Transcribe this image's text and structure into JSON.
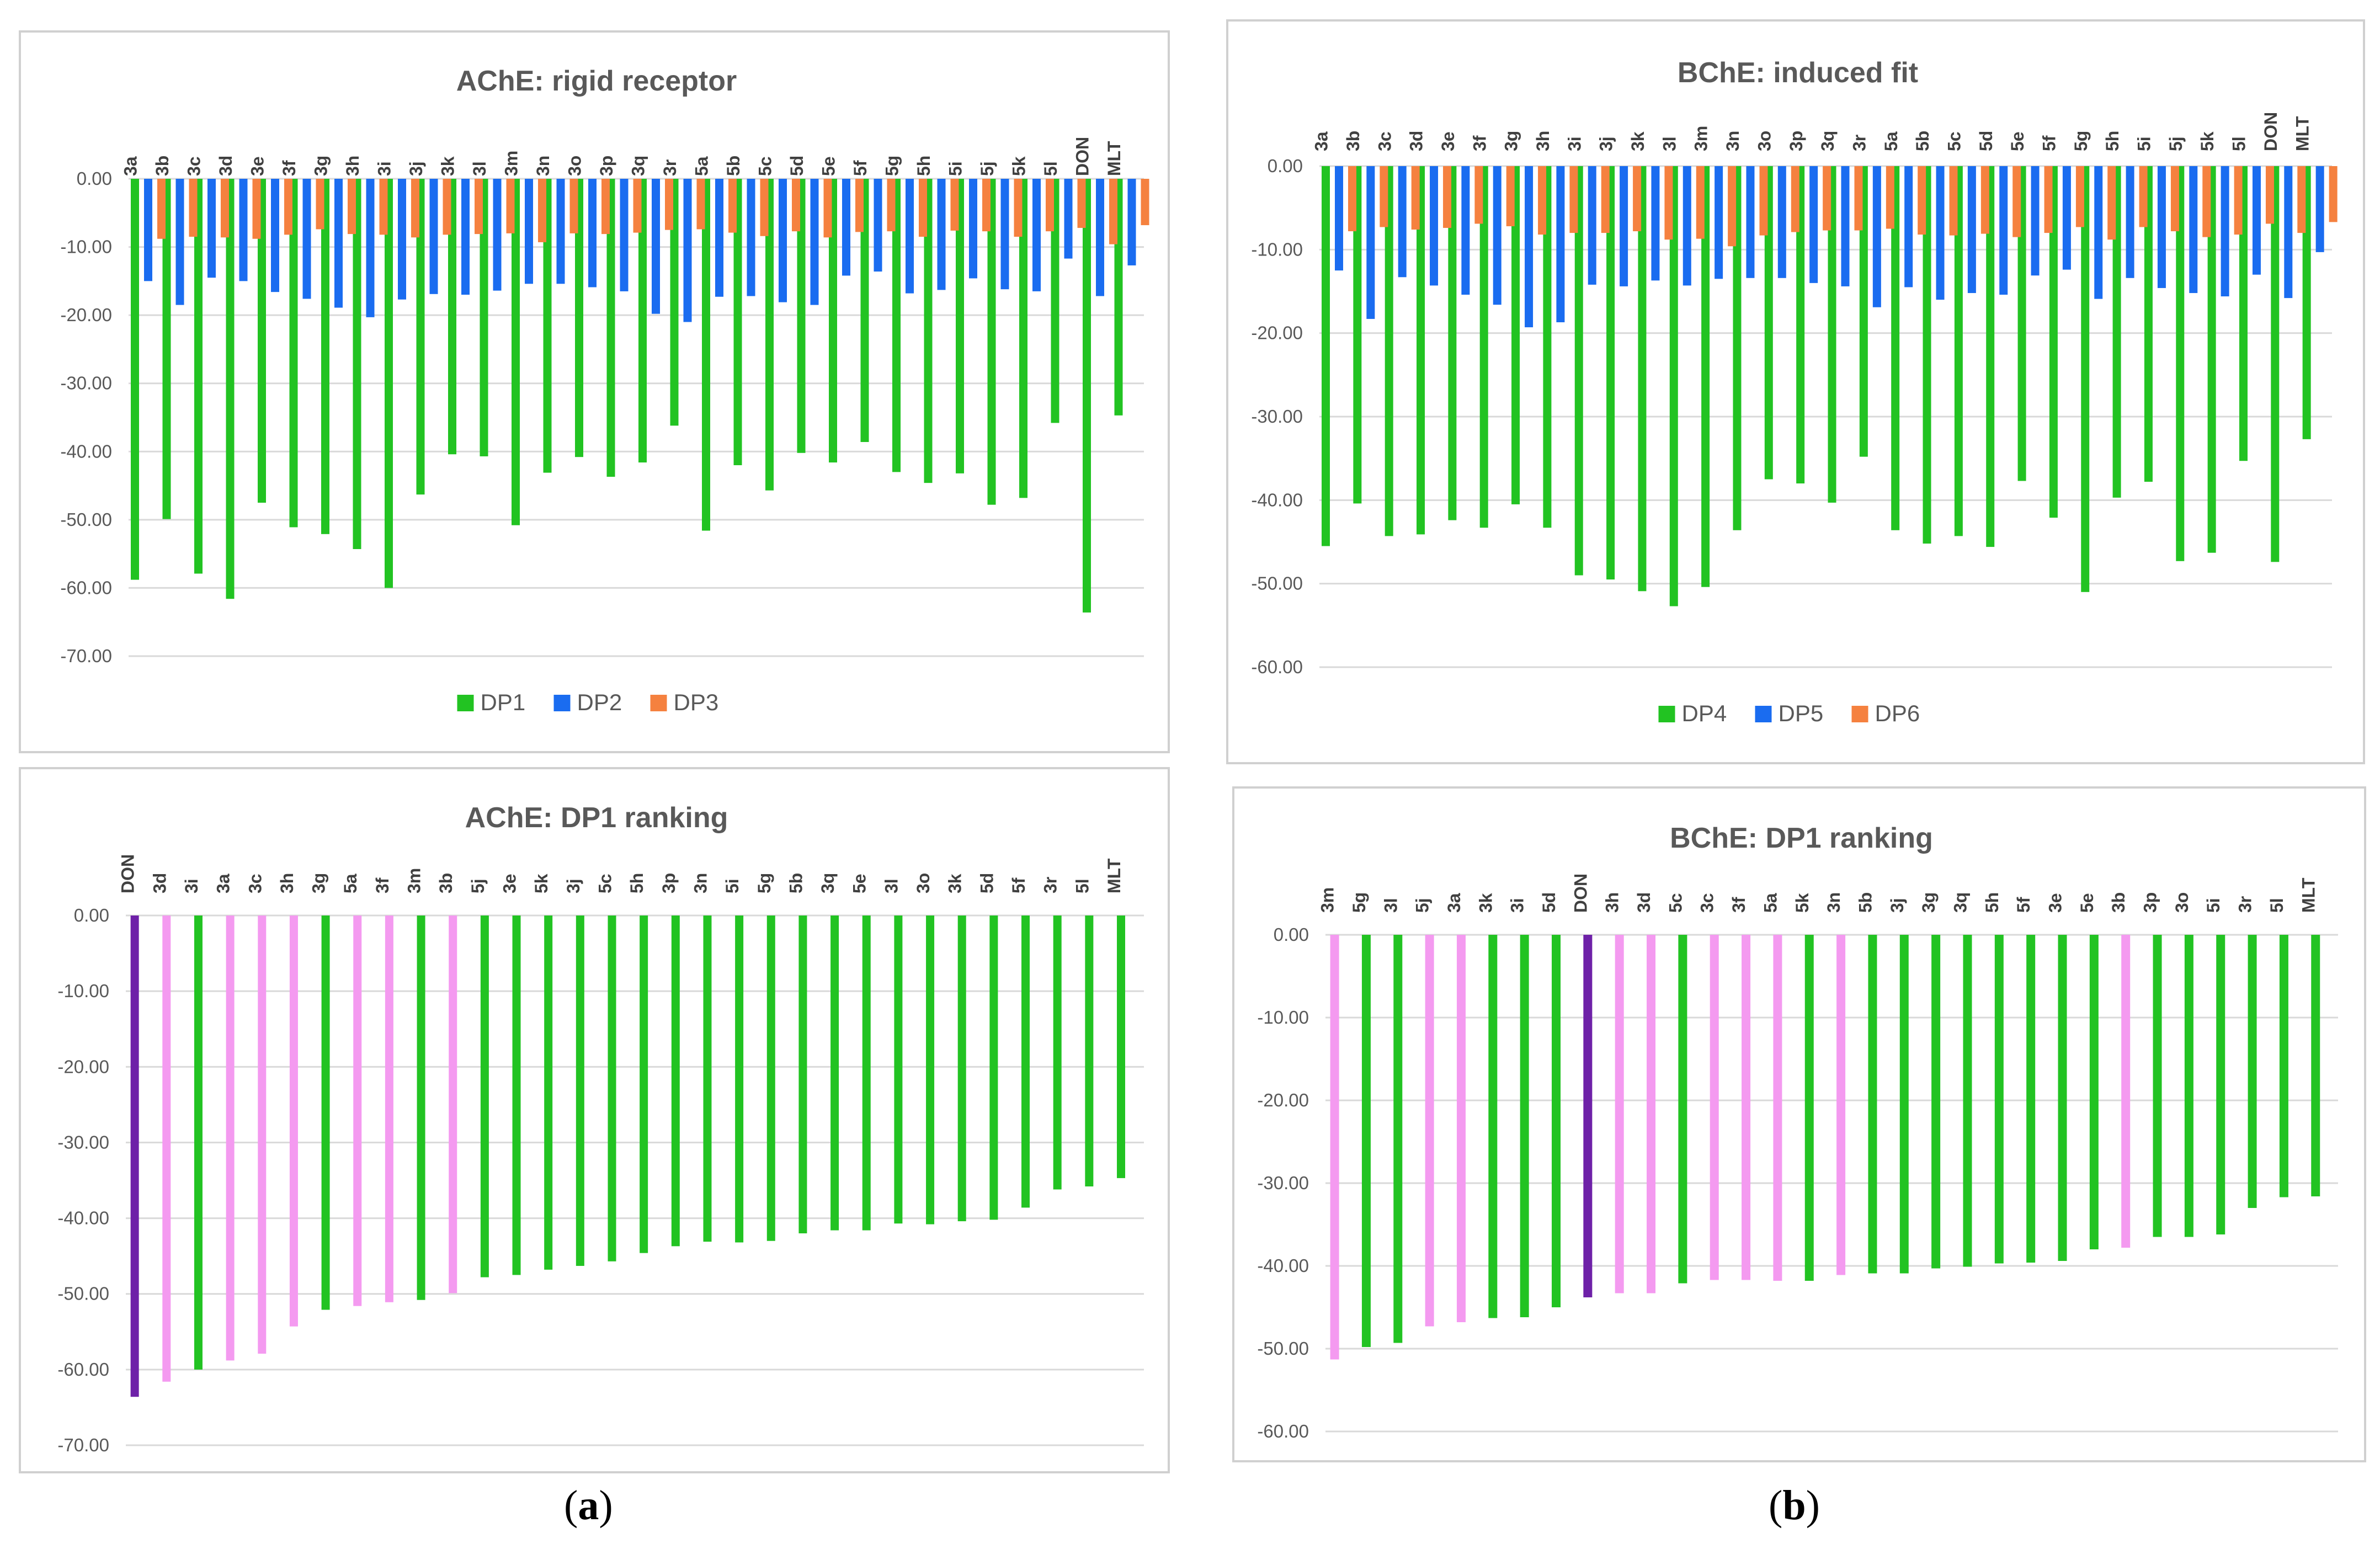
{
  "figure": {
    "label_a": "a",
    "label_b": "b"
  },
  "chart_data": [
    {
      "id": "ache_rigid",
      "type": "bar",
      "title": "AChE: rigid receptor",
      "ylim": [
        -70,
        0
      ],
      "ytick_step": 10,
      "legend": "bottom-center",
      "categories": [
        "3a",
        "3b",
        "3c",
        "3d",
        "3e",
        "3f",
        "3g",
        "3h",
        "3i",
        "3j",
        "3k",
        "3l",
        "3m",
        "3n",
        "3o",
        "3p",
        "3q",
        "3r",
        "5a",
        "5b",
        "5c",
        "5d",
        "5e",
        "5f",
        "5g",
        "5h",
        "5i",
        "5j",
        "5k",
        "5l",
        "DON",
        "MLT"
      ],
      "series": [
        {
          "name": "DP1",
          "color": "#22c322",
          "values": [
            -58.8,
            -49.9,
            -57.9,
            -61.6,
            -47.5,
            -51.1,
            -52.1,
            -54.3,
            -60.0,
            -46.3,
            -40.4,
            -40.7,
            -50.8,
            -43.1,
            -40.8,
            -43.7,
            -41.6,
            -36.2,
            -51.6,
            -42.0,
            -45.7,
            -40.2,
            -41.6,
            -38.6,
            -43.0,
            -44.6,
            -43.2,
            -47.8,
            -46.8,
            -35.8,
            -63.6,
            -34.7
          ]
        },
        {
          "name": "DP2",
          "color": "#1a6cf0",
          "values": [
            -15.0,
            -18.5,
            -14.5,
            -15.0,
            -16.6,
            -17.6,
            -18.9,
            -20.3,
            -17.7,
            -16.9,
            -17.0,
            -16.4,
            -15.4,
            -15.4,
            -15.9,
            -16.5,
            -19.8,
            -21.0,
            -17.3,
            -17.2,
            -18.1,
            -18.5,
            -14.2,
            -13.6,
            -16.8,
            -16.3,
            -14.6,
            -16.2,
            -16.5,
            -11.7,
            -17.2,
            -12.7
          ]
        },
        {
          "name": "DP3",
          "color": "#f5813f",
          "values": [
            -8.8,
            -8.5,
            -8.6,
            -8.8,
            -8.2,
            -7.4,
            -8.1,
            -8.2,
            -8.6,
            -8.2,
            -8.1,
            -8.0,
            -9.3,
            -8.0,
            -8.1,
            -7.9,
            -7.5,
            -7.4,
            -7.9,
            -8.4,
            -7.7,
            -8.6,
            -7.8,
            -7.7,
            -8.5,
            -7.6,
            -7.7,
            -8.5,
            -7.7,
            -7.2,
            -9.6,
            -6.8
          ]
        }
      ]
    },
    {
      "id": "bche_induced",
      "type": "bar",
      "title": "BChE: induced fit",
      "ylim": [
        -60,
        0
      ],
      "ytick_step": 10,
      "legend": "bottom-center",
      "categories": [
        "3a",
        "3b",
        "3c",
        "3d",
        "3e",
        "3f",
        "3g",
        "3h",
        "3i",
        "3j",
        "3k",
        "3l",
        "3m",
        "3n",
        "3o",
        "3p",
        "3q",
        "3r",
        "5a",
        "5b",
        "5c",
        "5d",
        "5e",
        "5f",
        "5g",
        "5h",
        "5i",
        "5j",
        "5k",
        "5l",
        "DON",
        "MLT"
      ],
      "series": [
        {
          "name": "DP4",
          "color": "#22c322",
          "values": [
            -45.5,
            -40.4,
            -44.3,
            -44.1,
            -42.4,
            -43.3,
            -40.5,
            -43.3,
            -49.0,
            -49.5,
            -50.9,
            -52.7,
            -50.4,
            -43.6,
            -37.5,
            -38.0,
            -40.3,
            -34.8,
            -43.6,
            -45.2,
            -44.3,
            -45.6,
            -37.7,
            -42.1,
            -51.0,
            -39.7,
            -37.8,
            -47.3,
            -46.3,
            -35.3,
            -47.4,
            -32.7
          ]
        },
        {
          "name": "DP5",
          "color": "#1a6cf0",
          "values": [
            -12.5,
            -18.3,
            -13.3,
            -14.3,
            -15.4,
            -16.6,
            -19.3,
            -18.7,
            -14.2,
            -14.4,
            -13.7,
            -14.3,
            -13.5,
            -13.4,
            -13.4,
            -14.0,
            -14.4,
            -16.9,
            -14.5,
            -16.0,
            -15.2,
            -15.4,
            -13.1,
            -12.4,
            -15.9,
            -13.4,
            -14.6,
            -15.2,
            -15.6,
            -13.0,
            -15.8,
            -10.3
          ]
        },
        {
          "name": "DP6",
          "color": "#f5813f",
          "values": [
            -7.8,
            -7.3,
            -7.6,
            -7.4,
            -6.9,
            -7.2,
            -8.2,
            -8.0,
            -8.0,
            -7.8,
            -8.8,
            -8.7,
            -9.6,
            -8.3,
            -7.9,
            -7.7,
            -7.7,
            -7.5,
            -8.2,
            -8.3,
            -8.1,
            -8.5,
            -8.0,
            -7.3,
            -8.8,
            -7.3,
            -7.8,
            -8.5,
            -8.2,
            -6.9,
            -8.0,
            -6.7
          ]
        }
      ]
    },
    {
      "id": "ache_ranking",
      "type": "bar",
      "title": "AChE: DP1 ranking",
      "ylim": [
        -70,
        0
      ],
      "ytick_step": 10,
      "categories": [
        "DON",
        "3d",
        "3i",
        "3a",
        "3c",
        "3h",
        "3g",
        "5a",
        "3f",
        "3m",
        "3b",
        "5j",
        "3e",
        "5k",
        "3j",
        "5c",
        "5h",
        "3p",
        "3n",
        "5i",
        "5g",
        "5b",
        "3q",
        "5e",
        "3l",
        "3o",
        "3k",
        "5d",
        "5f",
        "3r",
        "5l",
        "MLT"
      ],
      "values": [
        -63.6,
        -61.6,
        -60.0,
        -58.8,
        -57.9,
        -54.3,
        -52.1,
        -51.6,
        -51.1,
        -50.8,
        -49.9,
        -47.8,
        -47.5,
        -46.8,
        -46.3,
        -45.7,
        -44.6,
        -43.7,
        -43.1,
        -43.2,
        -43.0,
        -42.0,
        -41.6,
        -41.6,
        -40.7,
        -40.8,
        -40.4,
        -40.2,
        -38.6,
        -36.2,
        -35.8,
        -34.7
      ],
      "colors": [
        "#6e21a8",
        "#f49af0",
        "#22c322",
        "#f49af0",
        "#f49af0",
        "#f49af0",
        "#22c322",
        "#f49af0",
        "#f49af0",
        "#22c322",
        "#f49af0",
        "#22c322",
        "#22c322",
        "#22c322",
        "#22c322",
        "#22c322",
        "#22c322",
        "#22c322",
        "#22c322",
        "#22c322",
        "#22c322",
        "#22c322",
        "#22c322",
        "#22c322",
        "#22c322",
        "#22c322",
        "#22c322",
        "#22c322",
        "#22c322",
        "#22c322",
        "#22c322",
        "#22c322"
      ]
    },
    {
      "id": "bche_ranking",
      "type": "bar",
      "title": "BChE: DP1 ranking",
      "ylim": [
        -60,
        0
      ],
      "ytick_step": 10,
      "categories": [
        "3m",
        "5g",
        "3l",
        "5j",
        "3a",
        "3k",
        "3i",
        "5d",
        "DON",
        "3h",
        "3d",
        "5c",
        "3c",
        "3f",
        "5a",
        "5k",
        "3n",
        "5b",
        "3j",
        "3g",
        "3q",
        "5h",
        "5f",
        "3e",
        "5e",
        "3b",
        "3p",
        "3o",
        "5i",
        "3r",
        "5l",
        "MLT"
      ],
      "values": [
        -51.3,
        -49.8,
        -49.3,
        -47.3,
        -46.8,
        -46.3,
        -46.2,
        -45.0,
        -43.8,
        -43.3,
        -43.3,
        -42.1,
        -41.7,
        -41.7,
        -41.8,
        -41.8,
        -41.1,
        -40.9,
        -40.9,
        -40.3,
        -40.1,
        -39.7,
        -39.6,
        -39.4,
        -38.0,
        -37.8,
        -36.5,
        -36.5,
        -36.2,
        -33.0,
        -31.7,
        -31.6
      ],
      "colors": [
        "#f49af0",
        "#22c322",
        "#22c322",
        "#f49af0",
        "#f49af0",
        "#22c322",
        "#22c322",
        "#22c322",
        "#6e21a8",
        "#f49af0",
        "#f49af0",
        "#22c322",
        "#f49af0",
        "#f49af0",
        "#f49af0",
        "#22c322",
        "#f49af0",
        "#22c322",
        "#22c322",
        "#22c322",
        "#22c322",
        "#22c322",
        "#22c322",
        "#22c322",
        "#22c322",
        "#f49af0",
        "#22c322",
        "#22c322",
        "#22c322",
        "#22c322",
        "#22c322",
        "#22c322"
      ]
    }
  ]
}
